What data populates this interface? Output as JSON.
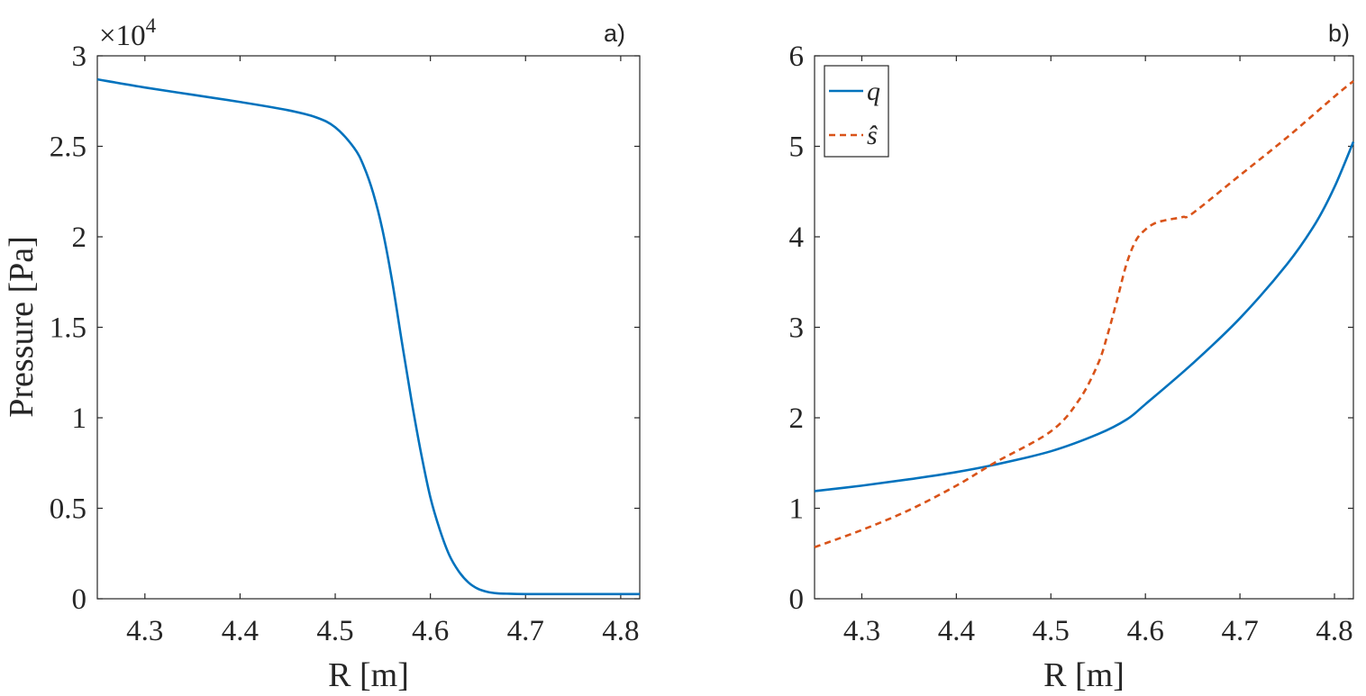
{
  "chart_data": [
    {
      "type": "line",
      "panel_label": "a)",
      "title": "",
      "xlabel": "R [m]",
      "ylabel": "Pressure [Pa]",
      "xlim": [
        4.25,
        4.82
      ],
      "ylim": [
        0,
        30000
      ],
      "xticks": [
        4.3,
        4.4,
        4.5,
        4.6,
        4.7,
        4.8
      ],
      "xtick_labels": [
        "4.3",
        "4.4",
        "4.5",
        "4.6",
        "4.7",
        "4.8"
      ],
      "yticks": [
        0,
        5000,
        10000,
        15000,
        20000,
        25000,
        30000
      ],
      "ytick_labels": [
        "0",
        "0.5",
        "1",
        "1.5",
        "2",
        "2.5",
        "3"
      ],
      "y_exponent_label": "×10",
      "y_exponent_power": "4",
      "series": [
        {
          "name": "Pressure",
          "color": "#0072BD",
          "style": "solid",
          "x": [
            4.25,
            4.3,
            4.35,
            4.4,
            4.45,
            4.48,
            4.5,
            4.52,
            4.53,
            4.54,
            4.55,
            4.56,
            4.57,
            4.58,
            4.59,
            4.6,
            4.61,
            4.62,
            4.63,
            4.64,
            4.65,
            4.66,
            4.67,
            4.68,
            4.7,
            4.75,
            4.82
          ],
          "y": [
            28700,
            28250,
            27850,
            27450,
            27000,
            26600,
            26050,
            24900,
            23900,
            22400,
            20300,
            17500,
            14200,
            11000,
            8100,
            5600,
            3800,
            2400,
            1500,
            900,
            550,
            380,
            300,
            280,
            260,
            260,
            260
          ]
        }
      ]
    },
    {
      "type": "line",
      "panel_label": "b)",
      "title": "",
      "xlabel": "R [m]",
      "ylabel": "",
      "xlim": [
        4.25,
        4.82
      ],
      "ylim": [
        0,
        6
      ],
      "xticks": [
        4.3,
        4.4,
        4.5,
        4.6,
        4.7,
        4.8
      ],
      "xtick_labels": [
        "4.3",
        "4.4",
        "4.5",
        "4.6",
        "4.7",
        "4.8"
      ],
      "yticks": [
        0,
        1,
        2,
        3,
        4,
        5,
        6
      ],
      "ytick_labels": [
        "0",
        "1",
        "2",
        "3",
        "4",
        "5",
        "6"
      ],
      "legend_position": "top-left",
      "series": [
        {
          "name": "q",
          "color": "#0072BD",
          "style": "solid",
          "x": [
            4.25,
            4.3,
            4.35,
            4.4,
            4.44,
            4.5,
            4.55,
            4.58,
            4.6,
            4.65,
            4.7,
            4.75,
            4.78,
            4.8,
            4.82
          ],
          "y": [
            1.19,
            1.25,
            1.32,
            1.4,
            1.48,
            1.63,
            1.82,
            1.98,
            2.15,
            2.6,
            3.1,
            3.7,
            4.15,
            4.55,
            5.05
          ]
        },
        {
          "name": "ŝ",
          "color": "#D95319",
          "style": "dashed",
          "x": [
            4.25,
            4.3,
            4.35,
            4.4,
            4.44,
            4.5,
            4.53,
            4.55,
            4.56,
            4.57,
            4.58,
            4.59,
            4.6,
            4.61,
            4.62,
            4.63,
            4.64,
            4.65,
            4.7,
            4.75,
            4.8,
            4.82
          ],
          "y": [
            0.57,
            0.76,
            0.98,
            1.25,
            1.5,
            1.85,
            2.2,
            2.6,
            2.92,
            3.3,
            3.7,
            3.96,
            4.08,
            4.15,
            4.18,
            4.2,
            4.22,
            4.26,
            4.68,
            5.1,
            5.55,
            5.72
          ]
        }
      ]
    }
  ]
}
